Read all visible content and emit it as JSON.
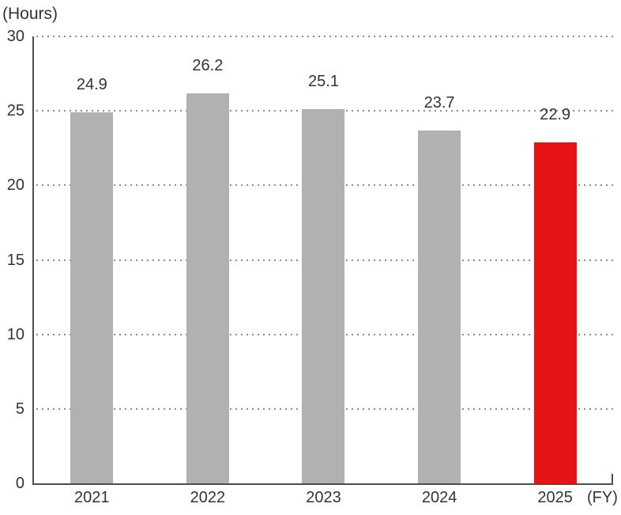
{
  "colors": {
    "background": "#ffffff",
    "text": "#333333",
    "axis": "#4d4d4d",
    "grid_dot": "#8c8c8c",
    "bar_default": "#b1b1b1",
    "bar_highlight": "#e61414"
  },
  "chart_data": {
    "type": "bar",
    "ylabel": "(Hours)",
    "xlabel": "(FY)",
    "categories": [
      "2021",
      "2022",
      "2023",
      "2024",
      "2025"
    ],
    "values": [
      24.9,
      26.2,
      25.1,
      23.7,
      22.9
    ],
    "value_labels": [
      "24.9",
      "26.2",
      "25.1",
      "23.7",
      "22.9"
    ],
    "highlight_index": 4,
    "ylim": [
      0,
      30
    ],
    "yticks": [
      0,
      5,
      10,
      15,
      20,
      25,
      30
    ],
    "grid": "horizontal-dotted",
    "legend": "none"
  }
}
